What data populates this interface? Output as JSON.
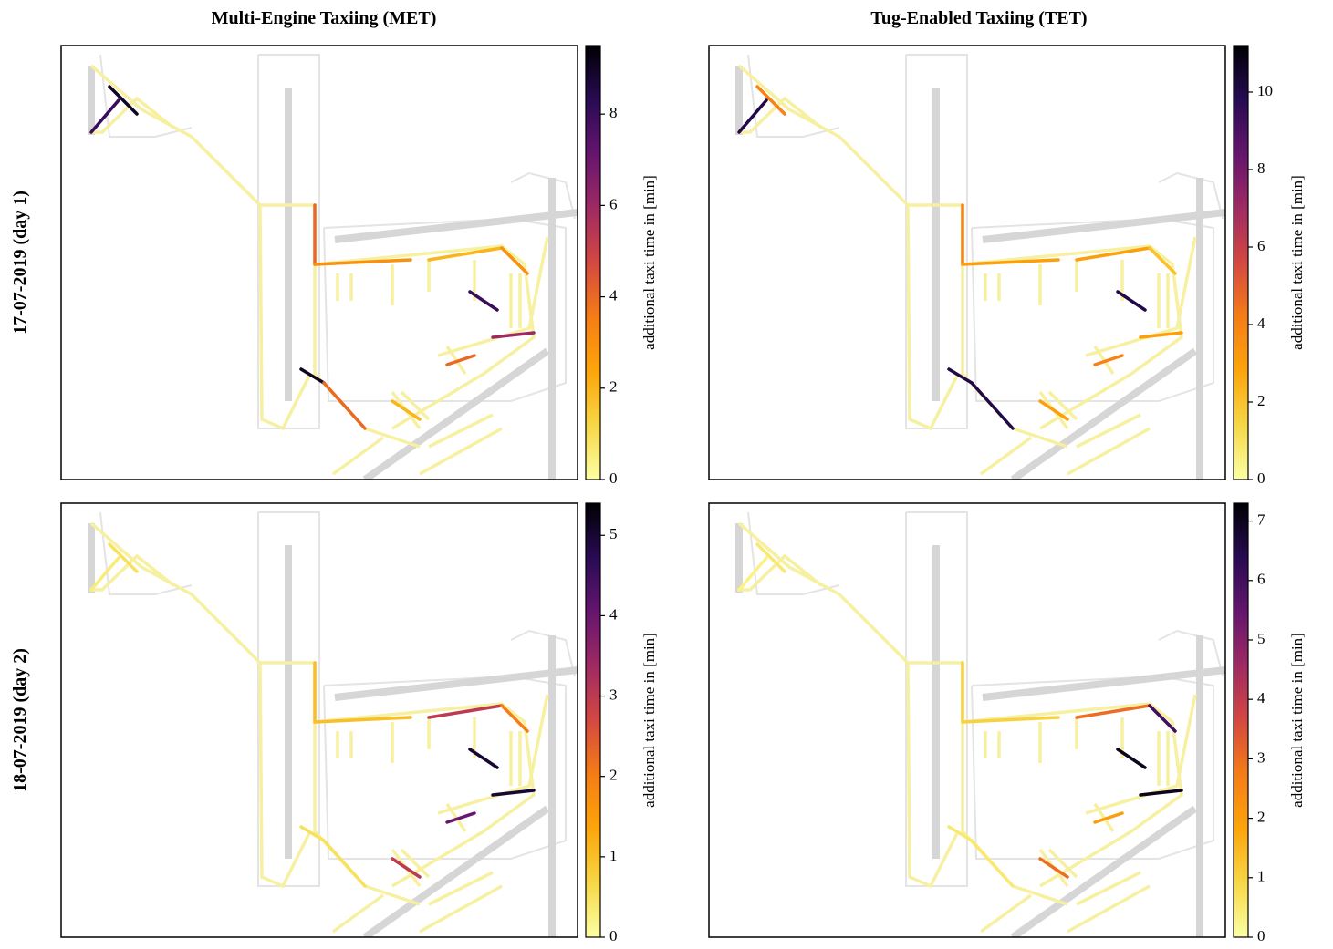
{
  "figure": {
    "column_titles": [
      "Multi-Engine Taxiing (MET)",
      "Tug-Enabled Taxiing (TET)"
    ],
    "row_labels": [
      "17-07-2019 (day 1)",
      "18-07-2019 (day 2)"
    ]
  },
  "colormap": [
    "#fcffa4",
    "#f6d746",
    "#fca50a",
    "#f57d15",
    "#d44842",
    "#9f2a63",
    "#65156e",
    "#280b53",
    "#000004"
  ],
  "chart_data": [
    {
      "type": "map",
      "colorbar_label": "additional taxi time in [min]",
      "clim": [
        0,
        9.5
      ],
      "cticks": [
        0,
        2,
        4,
        6,
        8
      ],
      "segment_values": [
        9,
        8,
        4,
        3,
        2,
        3,
        9,
        4,
        8,
        6,
        4,
        2
      ]
    },
    {
      "type": "map",
      "colorbar_label": "additional taxi time in [min]",
      "clim": [
        0,
        11.2
      ],
      "cticks": [
        0,
        2,
        4,
        6,
        8,
        10
      ],
      "segment_values": [
        4,
        10,
        4,
        3,
        3,
        2,
        10,
        10,
        10,
        3,
        4,
        3
      ]
    },
    {
      "type": "map",
      "colorbar_label": "additional taxi time in [min]",
      "clim": [
        0,
        5.4
      ],
      "cticks": [
        0,
        1,
        2,
        3,
        4,
        5
      ],
      "segment_values": [
        0.5,
        0.3,
        1,
        1,
        3,
        2,
        0.5,
        0.5,
        5,
        5,
        4,
        3
      ]
    },
    {
      "type": "map",
      "colorbar_label": "additional taxi time in [min]",
      "clim": [
        0,
        7.3
      ],
      "cticks": [
        0,
        1,
        2,
        3,
        4,
        5,
        6,
        7
      ],
      "segment_values": [
        0.5,
        0.3,
        1,
        1,
        3,
        6,
        0.5,
        0.5,
        7,
        7,
        2,
        3
      ]
    }
  ]
}
